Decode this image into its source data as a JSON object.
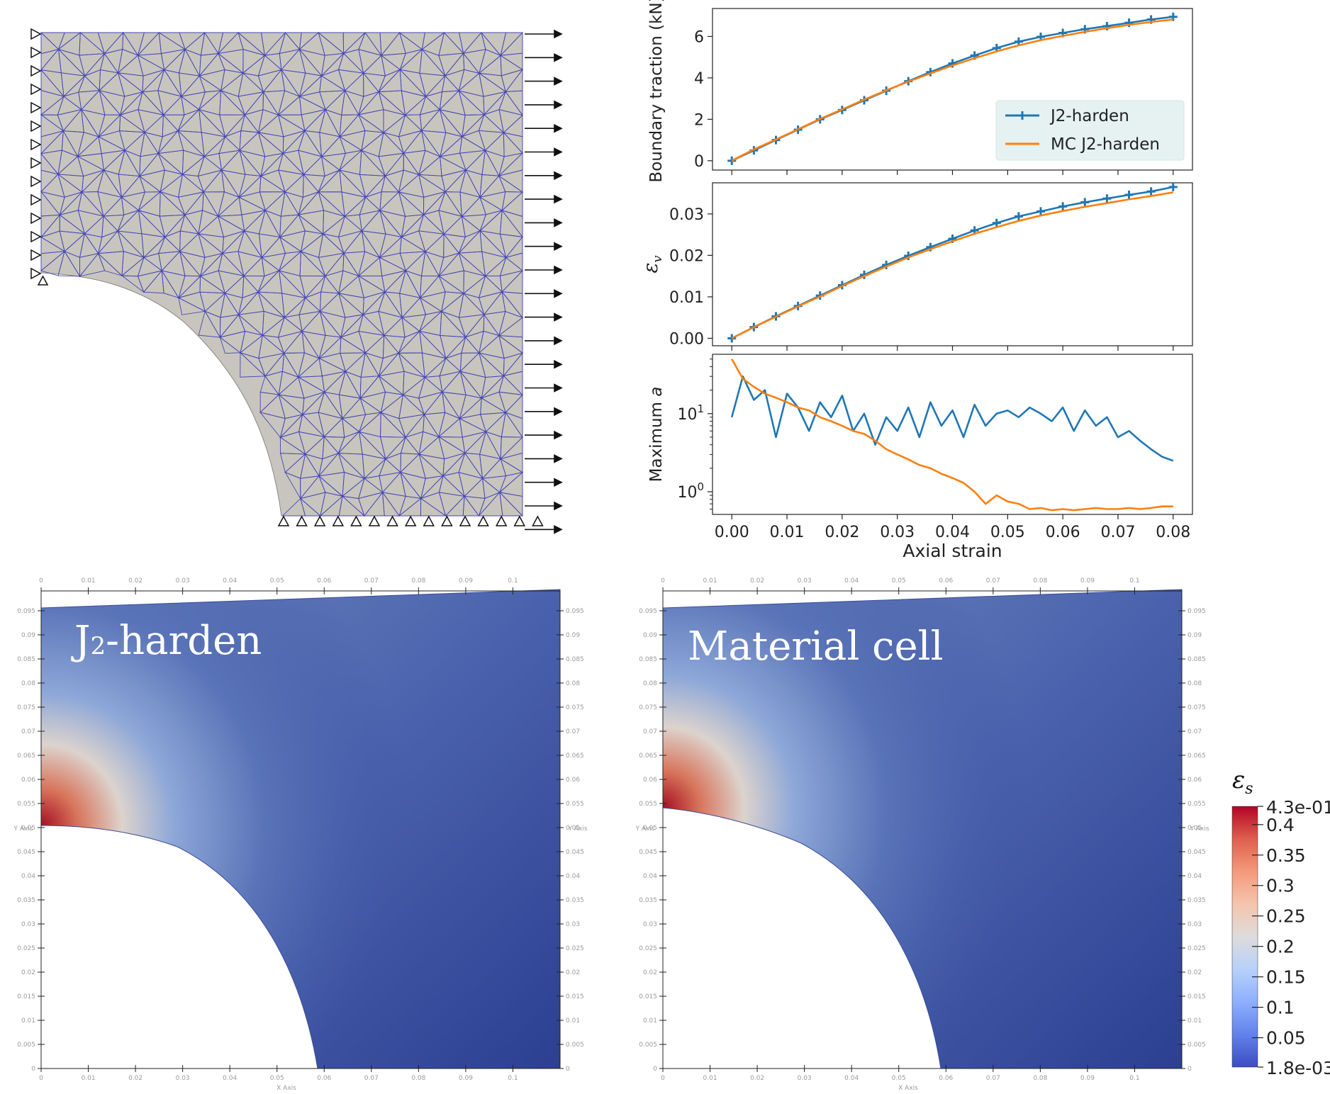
{
  "mesh_panel": {
    "description_visible": false
  },
  "contour_labels": {
    "left": {
      "base": "J",
      "sub": "2",
      "rest": "-harden"
    },
    "right": {
      "text": "Material cell"
    }
  },
  "paraview_axes": {
    "x_ticks": [
      "0",
      "0.01",
      "0.02",
      "0.03",
      "0.04",
      "0.05",
      "0.06",
      "0.07",
      "0.08",
      "0.09",
      "0.1"
    ],
    "y_ticks": [
      "0",
      "0.005",
      "0.01",
      "0.015",
      "0.02",
      "0.025",
      "0.03",
      "0.035",
      "0.04",
      "0.045",
      "0.05",
      "0.055",
      "0.06",
      "0.065",
      "0.07",
      "0.075",
      "0.08",
      "0.085",
      "0.09",
      "0.095"
    ],
    "x_title": "X Axis",
    "y_title": "Y Axis"
  },
  "colorbar": {
    "title": "ε",
    "title_sub": "s",
    "max_label": "4.3e-01",
    "min_label": "1.8e-03",
    "tick_labels": [
      "0.4",
      "0.35",
      "0.3",
      "0.25",
      "0.2",
      "0.15",
      "0.1",
      "0.05"
    ],
    "tick_values": [
      0.4,
      0.35,
      0.3,
      0.25,
      0.2,
      0.15,
      0.1,
      0.05
    ],
    "min": 0.0018,
    "max": 0.43,
    "colors": [
      "#3b4cc0",
      "#6282ea",
      "#8db0fe",
      "#b8d0f9",
      "#dddcdc",
      "#f5c4ad",
      "#f49a7b",
      "#de604d",
      "#b40426"
    ]
  },
  "chart_data": [
    {
      "type": "line",
      "ylabel": "Boundary traction (kN)",
      "xlim": [
        -0.0035,
        0.0835
      ],
      "ylim": [
        -0.45,
        7.35
      ],
      "yticks": [
        0,
        2,
        4,
        6
      ],
      "xticks": [
        0,
        0.01,
        0.02,
        0.03,
        0.04,
        0.05,
        0.06,
        0.07,
        0.08
      ],
      "legend": {
        "placement": "lower-right",
        "entries": [
          "J2-harden",
          "MC J2-harden"
        ]
      },
      "series": [
        {
          "name": "J2-harden",
          "color": "#1f77b4",
          "marker": "plus",
          "x": [
            0,
            0.004,
            0.008,
            0.012,
            0.016,
            0.02,
            0.024,
            0.028,
            0.032,
            0.036,
            0.04,
            0.044,
            0.048,
            0.052,
            0.056,
            0.06,
            0.064,
            0.068,
            0.072,
            0.076,
            0.08
          ],
          "y": [
            0,
            0.5,
            1.0,
            1.5,
            2.0,
            2.45,
            2.92,
            3.38,
            3.84,
            4.28,
            4.7,
            5.08,
            5.44,
            5.75,
            5.98,
            6.17,
            6.35,
            6.5,
            6.66,
            6.82,
            6.95
          ]
        },
        {
          "name": "MC J2-harden",
          "color": "#ff7f0e",
          "marker": "none",
          "x": [
            0,
            0.004,
            0.008,
            0.012,
            0.016,
            0.02,
            0.024,
            0.028,
            0.032,
            0.036,
            0.04,
            0.044,
            0.048,
            0.052,
            0.056,
            0.06,
            0.064,
            0.068,
            0.072,
            0.076,
            0.08
          ],
          "y": [
            0,
            0.55,
            1.02,
            1.52,
            2.02,
            2.48,
            2.95,
            3.4,
            3.82,
            4.22,
            4.6,
            4.95,
            5.28,
            5.57,
            5.82,
            6.03,
            6.22,
            6.4,
            6.56,
            6.7,
            6.82
          ]
        }
      ]
    },
    {
      "type": "line",
      "ylabel": "ε",
      "ylabel_sub": "v",
      "xlim": [
        -0.0035,
        0.0835
      ],
      "ylim": [
        -0.0018,
        0.0375
      ],
      "yticks": [
        0,
        0.01,
        0.02,
        0.03
      ],
      "ytick_labels": [
        "0.00",
        "0.01",
        "0.02",
        "0.03"
      ],
      "series": [
        {
          "name": "J2-harden",
          "color": "#1f77b4",
          "marker": "plus",
          "x": [
            0,
            0.004,
            0.008,
            0.012,
            0.016,
            0.02,
            0.024,
            0.028,
            0.032,
            0.036,
            0.04,
            0.044,
            0.048,
            0.052,
            0.056,
            0.06,
            0.064,
            0.068,
            0.072,
            0.076,
            0.08
          ],
          "y": [
            0,
            0.0027,
            0.0053,
            0.0078,
            0.0103,
            0.0128,
            0.0153,
            0.0177,
            0.0199,
            0.022,
            0.024,
            0.026,
            0.0278,
            0.0294,
            0.0306,
            0.0318,
            0.0328,
            0.0337,
            0.0346,
            0.0354,
            0.0365
          ]
        },
        {
          "name": "MC J2-harden",
          "color": "#ff7f0e",
          "marker": "none",
          "x": [
            0,
            0.004,
            0.008,
            0.012,
            0.016,
            0.02,
            0.024,
            0.028,
            0.032,
            0.036,
            0.04,
            0.044,
            0.048,
            0.052,
            0.056,
            0.06,
            0.064,
            0.068,
            0.072,
            0.076,
            0.08
          ],
          "y": [
            0,
            0.0027,
            0.0052,
            0.0077,
            0.0101,
            0.0126,
            0.015,
            0.0173,
            0.0195,
            0.0215,
            0.0234,
            0.0252,
            0.0268,
            0.0283,
            0.0296,
            0.0307,
            0.0317,
            0.0326,
            0.0335,
            0.0343,
            0.0352
          ]
        }
      ]
    },
    {
      "type": "line",
      "yscale": "log",
      "xlabel": "Axial strain",
      "ylabel": "Maximum a",
      "xlim": [
        -0.0035,
        0.0835
      ],
      "ylog_range": [
        -0.29,
        1.76
      ],
      "yticks": [
        1,
        10
      ],
      "ytick_labels": [
        "10^0",
        "10^1"
      ],
      "xticks": [
        0,
        0.01,
        0.02,
        0.03,
        0.04,
        0.05,
        0.06,
        0.07,
        0.08
      ],
      "xtick_labels": [
        "0.00",
        "0.01",
        "0.02",
        "0.03",
        "0.04",
        "0.05",
        "0.06",
        "0.07",
        "0.08"
      ],
      "series": [
        {
          "name": "J2-harden",
          "color": "#1f77b4",
          "x": [
            0,
            0.002,
            0.004,
            0.006,
            0.008,
            0.01,
            0.012,
            0.014,
            0.016,
            0.018,
            0.02,
            0.022,
            0.024,
            0.026,
            0.028,
            0.03,
            0.032,
            0.034,
            0.036,
            0.038,
            0.04,
            0.042,
            0.044,
            0.046,
            0.048,
            0.05,
            0.052,
            0.054,
            0.056,
            0.058,
            0.06,
            0.062,
            0.064,
            0.066,
            0.068,
            0.07,
            0.072,
            0.074,
            0.076,
            0.078,
            0.08
          ],
          "y": [
            9,
            30,
            15,
            20,
            5,
            18,
            12,
            6,
            14,
            9,
            17,
            6,
            10,
            4,
            9,
            6,
            12,
            5,
            14,
            7,
            11,
            5,
            13,
            7,
            10,
            11,
            9,
            12,
            10,
            8,
            12,
            6,
            11,
            7,
            9,
            5,
            6,
            4.5,
            3.5,
            2.8,
            2.5
          ]
        },
        {
          "name": "MC J2-harden",
          "color": "#ff7f0e",
          "x": [
            0,
            0.002,
            0.004,
            0.006,
            0.008,
            0.01,
            0.012,
            0.014,
            0.016,
            0.018,
            0.02,
            0.022,
            0.024,
            0.026,
            0.028,
            0.03,
            0.032,
            0.034,
            0.036,
            0.038,
            0.04,
            0.042,
            0.044,
            0.046,
            0.048,
            0.05,
            0.052,
            0.054,
            0.056,
            0.058,
            0.06,
            0.062,
            0.064,
            0.066,
            0.068,
            0.07,
            0.072,
            0.074,
            0.076,
            0.078,
            0.08
          ],
          "y": [
            50,
            28,
            22,
            18,
            16,
            14,
            12,
            11,
            9,
            8,
            7,
            6,
            5.5,
            4.5,
            3.5,
            3,
            2.6,
            2.2,
            2,
            1.7,
            1.5,
            1.3,
            1,
            0.7,
            0.9,
            0.75,
            0.7,
            0.6,
            0.62,
            0.58,
            0.6,
            0.58,
            0.6,
            0.62,
            0.6,
            0.6,
            0.62,
            0.6,
            0.62,
            0.65,
            0.65
          ]
        }
      ]
    }
  ]
}
